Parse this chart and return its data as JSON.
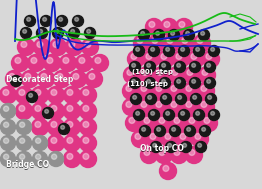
{
  "background_color": "#d8d8d8",
  "pt_pink": "#e03585",
  "co_black": "#181818",
  "co_gray": "#909090",
  "curve_blue": "#1020cc",
  "curve_green": "#18bb18",
  "text_white": "#ffffff",
  "left_label_decorated": "Decorated Step",
  "left_label_bridge": "Bridge CO",
  "right_label_100": "(100) step",
  "right_label_110": "(110) step",
  "right_label_ontop": "On top CO",
  "fig_w": 2.62,
  "fig_h": 1.89,
  "dpi": 100
}
